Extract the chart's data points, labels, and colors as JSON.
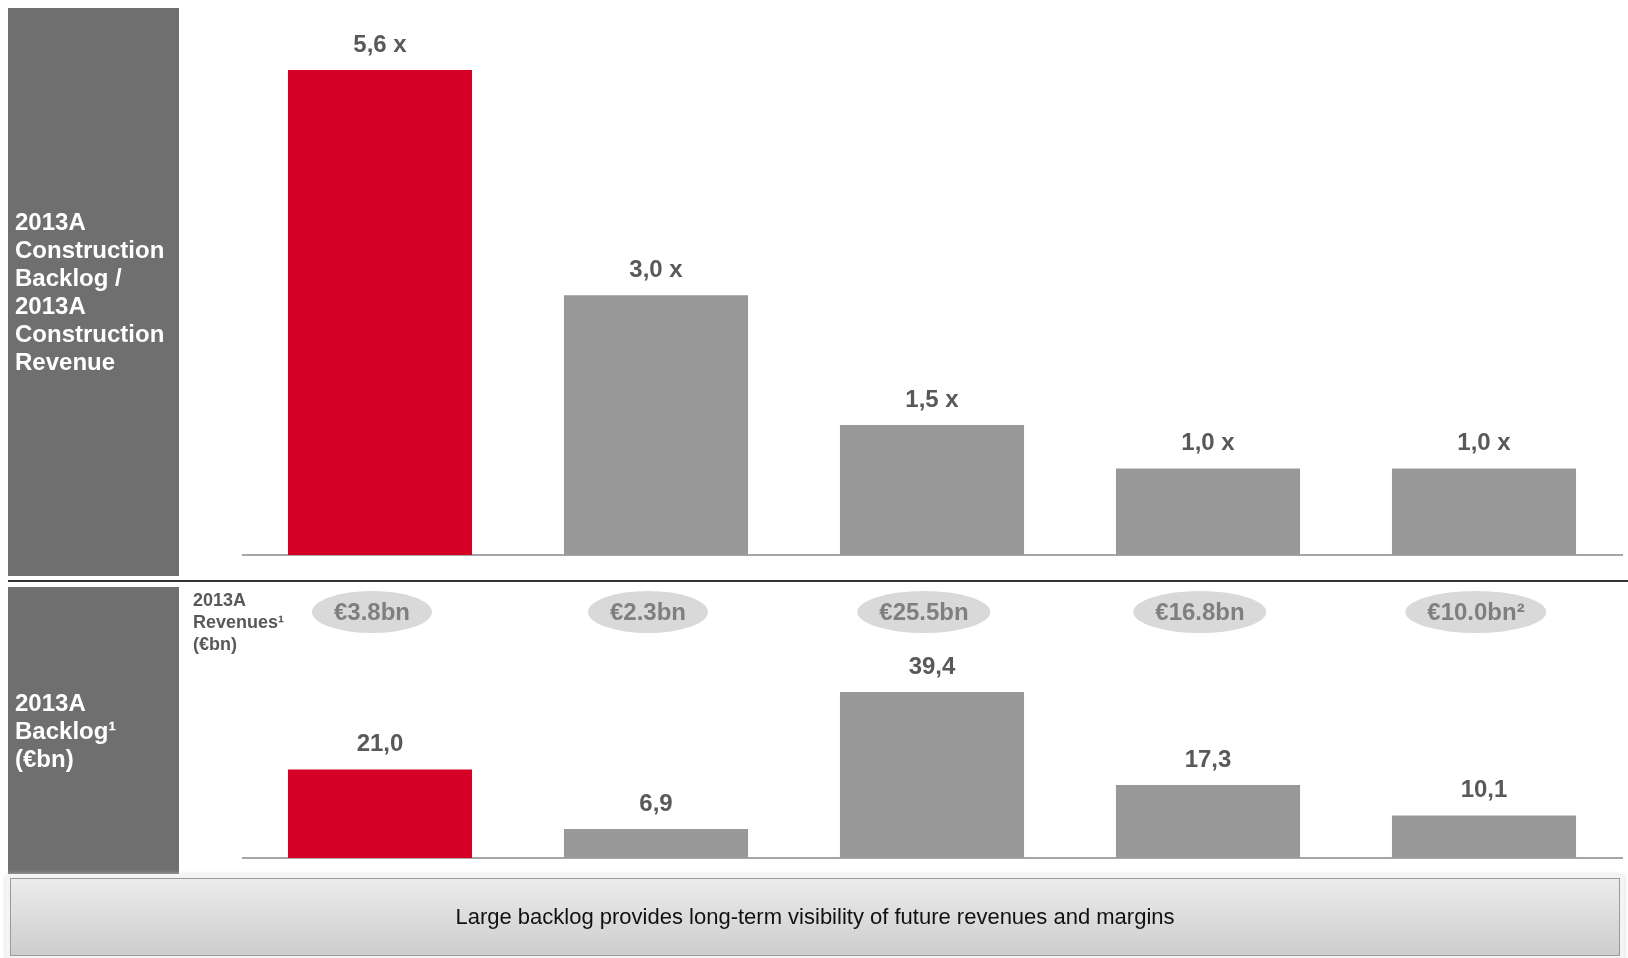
{
  "chart_data": [
    {
      "type": "bar",
      "title": "2013A Construction Backlog / 2013A Construction Revenue",
      "categories": [
        null,
        null,
        null,
        null,
        null
      ],
      "values": [
        5.6,
        3.0,
        1.5,
        1.0,
        1.0
      ],
      "colors": [
        "#d40026",
        "#999999",
        "#999999",
        "#999999",
        "#999999"
      ],
      "value_labels": [
        "5,6 x",
        "3,0 x",
        "1,5 x",
        "1,0 x",
        "1,0 x"
      ]
    },
    {
      "type": "other",
      "title": "2013A Revenues¹ (€bn)",
      "annotations": [
        "€3.8bn",
        "€2.3bn",
        "€25.5bn",
        "€16.8bn",
        "€10.0bn²"
      ]
    },
    {
      "type": "bar",
      "title": "2013A Backlog¹ (€bn)",
      "categories": [
        null,
        null,
        null,
        null,
        null
      ],
      "values": [
        21.0,
        6.9,
        39.4,
        17.3,
        10.1
      ],
      "colors": [
        "#d40026",
        "#999999",
        "#999999",
        "#999999",
        "#999999"
      ],
      "value_labels": [
        "21,0",
        "6,9",
        "39,4",
        "17,3",
        "10,1"
      ],
      "annotations": [
        "Large backlog provides long-term visibility of future revenues and margins"
      ]
    }
  ]
}
